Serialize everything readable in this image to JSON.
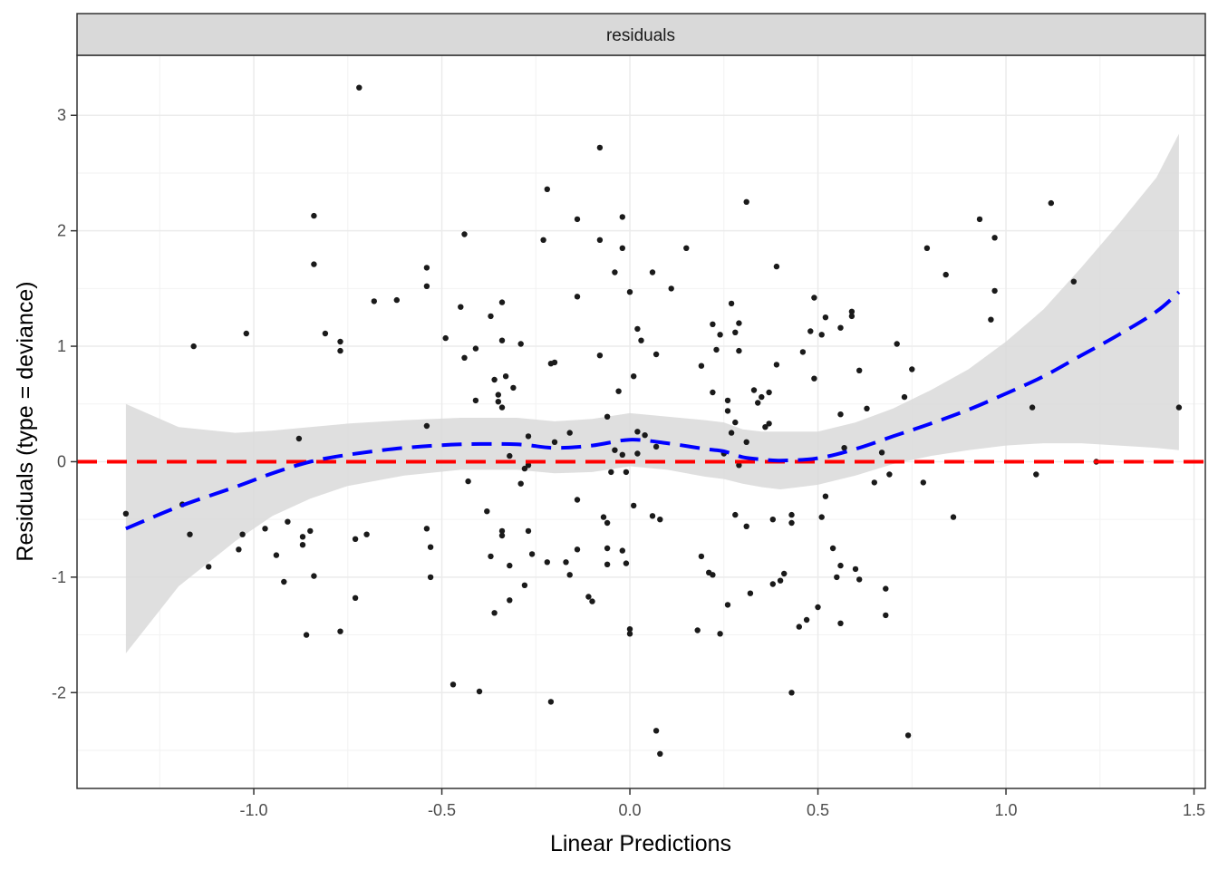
{
  "chart_data": {
    "type": "scatter",
    "panel_title": "residuals",
    "xlabel": "Linear Predictions",
    "ylabel": "Residuals (type = deviance)",
    "xlim": [
      -1.47,
      1.53
    ],
    "ylim": [
      -2.83,
      3.52
    ],
    "x_ticks": [
      -1.0,
      -0.5,
      0.0,
      0.5,
      1.0,
      1.5
    ],
    "x_tick_labels": [
      "-1.0",
      "-0.5",
      "0.0",
      "0.5",
      "1.0",
      "1.5"
    ],
    "y_ticks": [
      -2,
      -1,
      0,
      1,
      2,
      3
    ],
    "y_tick_labels": [
      "-2",
      "-1",
      "0",
      "1",
      "2",
      "3"
    ],
    "grid": true,
    "reference_line": {
      "y": 0,
      "color": "#ff0000",
      "style": "dashed"
    },
    "colors": {
      "points": "#1a1a1a",
      "smooth": "#0000ff",
      "ribbon": "#d9d9d9",
      "strip": "#d9d9d9"
    },
    "points": [
      [
        -1.34,
        -0.45
      ],
      [
        -1.19,
        -0.37
      ],
      [
        -1.17,
        -0.63
      ],
      [
        -1.16,
        1.0
      ],
      [
        -1.12,
        -0.91
      ],
      [
        -1.04,
        -0.76
      ],
      [
        -1.03,
        -0.63
      ],
      [
        -1.02,
        1.11
      ],
      [
        -0.97,
        -0.58
      ],
      [
        -0.94,
        -0.81
      ],
      [
        -0.92,
        -1.04
      ],
      [
        -0.91,
        -0.52
      ],
      [
        -0.88,
        0.2
      ],
      [
        -0.87,
        -0.65
      ],
      [
        -0.87,
        -0.72
      ],
      [
        -0.86,
        -1.5
      ],
      [
        -0.85,
        -0.6
      ],
      [
        -0.84,
        1.71
      ],
      [
        -0.84,
        2.13
      ],
      [
        -0.84,
        -0.99
      ],
      [
        -0.81,
        1.11
      ],
      [
        -0.77,
        1.04
      ],
      [
        -0.77,
        0.96
      ],
      [
        -0.77,
        -1.47
      ],
      [
        -0.73,
        -0.67
      ],
      [
        -0.73,
        -1.18
      ],
      [
        -0.72,
        3.24
      ],
      [
        -0.7,
        -0.63
      ],
      [
        -0.68,
        1.39
      ],
      [
        -0.62,
        1.4
      ],
      [
        -0.54,
        1.52
      ],
      [
        -0.54,
        1.68
      ],
      [
        -0.54,
        0.31
      ],
      [
        -0.54,
        -0.58
      ],
      [
        -0.53,
        -0.74
      ],
      [
        -0.53,
        -1.0
      ],
      [
        -0.49,
        1.07
      ],
      [
        -0.47,
        -1.93
      ],
      [
        -0.45,
        1.34
      ],
      [
        -0.44,
        0.9
      ],
      [
        -0.44,
        1.97
      ],
      [
        -0.43,
        -0.17
      ],
      [
        -0.41,
        0.98
      ],
      [
        -0.41,
        0.53
      ],
      [
        -0.4,
        -1.99
      ],
      [
        -0.38,
        -0.43
      ],
      [
        -0.37,
        -0.82
      ],
      [
        -0.37,
        1.26
      ],
      [
        -0.36,
        -1.31
      ],
      [
        -0.36,
        0.71
      ],
      [
        -0.35,
        0.58
      ],
      [
        -0.35,
        0.52
      ],
      [
        -0.34,
        1.38
      ],
      [
        -0.34,
        -0.64
      ],
      [
        -0.34,
        -0.6
      ],
      [
        -0.34,
        0.47
      ],
      [
        -0.34,
        1.05
      ],
      [
        -0.33,
        0.74
      ],
      [
        -0.32,
        -1.2
      ],
      [
        -0.32,
        -0.9
      ],
      [
        -0.32,
        0.05
      ],
      [
        -0.31,
        0.64
      ],
      [
        -0.29,
        1.02
      ],
      [
        -0.29,
        -0.19
      ],
      [
        -0.28,
        -1.07
      ],
      [
        -0.28,
        -0.06
      ],
      [
        -0.27,
        -0.03
      ],
      [
        -0.27,
        0.22
      ],
      [
        -0.27,
        -0.6
      ],
      [
        -0.26,
        -0.8
      ],
      [
        -0.23,
        1.92
      ],
      [
        -0.22,
        2.36
      ],
      [
        -0.22,
        -0.87
      ],
      [
        -0.21,
        0.85
      ],
      [
        -0.21,
        -2.08
      ],
      [
        -0.2,
        0.86
      ],
      [
        -0.2,
        0.17
      ],
      [
        -0.17,
        -0.87
      ],
      [
        -0.16,
        0.25
      ],
      [
        -0.16,
        -0.98
      ],
      [
        -0.14,
        2.1
      ],
      [
        -0.14,
        1.43
      ],
      [
        -0.14,
        -0.33
      ],
      [
        -0.14,
        -0.76
      ],
      [
        -0.11,
        -1.17
      ],
      [
        -0.1,
        -1.21
      ],
      [
        -0.08,
        2.72
      ],
      [
        -0.08,
        1.92
      ],
      [
        -0.08,
        0.92
      ],
      [
        -0.07,
        -0.48
      ],
      [
        -0.06,
        0.39
      ],
      [
        -0.06,
        -0.53
      ],
      [
        -0.06,
        -0.89
      ],
      [
        -0.06,
        -0.75
      ],
      [
        -0.05,
        -0.09
      ],
      [
        -0.04,
        1.64
      ],
      [
        -0.04,
        0.1
      ],
      [
        -0.03,
        0.61
      ],
      [
        -0.02,
        2.12
      ],
      [
        -0.02,
        1.85
      ],
      [
        -0.02,
        0.06
      ],
      [
        -0.02,
        -0.77
      ],
      [
        -0.01,
        -0.88
      ],
      [
        -0.01,
        -0.09
      ],
      [
        0.0,
        1.47
      ],
      [
        0.0,
        -1.49
      ],
      [
        0.0,
        -1.45
      ],
      [
        0.01,
        0.74
      ],
      [
        0.01,
        -0.38
      ],
      [
        0.02,
        0.07
      ],
      [
        0.02,
        0.26
      ],
      [
        0.02,
        1.15
      ],
      [
        0.03,
        1.05
      ],
      [
        0.04,
        0.23
      ],
      [
        0.06,
        1.64
      ],
      [
        0.06,
        -0.47
      ],
      [
        0.07,
        0.93
      ],
      [
        0.07,
        0.13
      ],
      [
        0.07,
        -2.33
      ],
      [
        0.08,
        -2.53
      ],
      [
        0.08,
        -0.5
      ],
      [
        0.11,
        1.5
      ],
      [
        0.15,
        1.85
      ],
      [
        0.18,
        -1.46
      ],
      [
        0.19,
        -0.82
      ],
      [
        0.19,
        0.83
      ],
      [
        0.21,
        -0.96
      ],
      [
        0.22,
        -0.98
      ],
      [
        0.22,
        0.6
      ],
      [
        0.22,
        1.19
      ],
      [
        0.23,
        0.97
      ],
      [
        0.24,
        1.1
      ],
      [
        0.24,
        -1.49
      ],
      [
        0.25,
        0.07
      ],
      [
        0.26,
        0.44
      ],
      [
        0.26,
        -1.24
      ],
      [
        0.26,
        0.53
      ],
      [
        0.27,
        0.25
      ],
      [
        0.27,
        1.37
      ],
      [
        0.28,
        0.34
      ],
      [
        0.28,
        -0.46
      ],
      [
        0.28,
        1.12
      ],
      [
        0.29,
        -0.03
      ],
      [
        0.29,
        1.2
      ],
      [
        0.29,
        0.96
      ],
      [
        0.31,
        0.17
      ],
      [
        0.31,
        -0.56
      ],
      [
        0.31,
        2.25
      ],
      [
        0.32,
        -1.14
      ],
      [
        0.33,
        0.62
      ],
      [
        0.34,
        0.51
      ],
      [
        0.35,
        0.56
      ],
      [
        0.36,
        0.3
      ],
      [
        0.37,
        0.6
      ],
      [
        0.37,
        0.33
      ],
      [
        0.38,
        -1.06
      ],
      [
        0.38,
        -0.5
      ],
      [
        0.39,
        1.69
      ],
      [
        0.39,
        0.84
      ],
      [
        0.4,
        -1.03
      ],
      [
        0.41,
        -0.97
      ],
      [
        0.43,
        -2.0
      ],
      [
        0.43,
        -0.46
      ],
      [
        0.43,
        -0.53
      ],
      [
        0.45,
        -1.43
      ],
      [
        0.46,
        0.95
      ],
      [
        0.47,
        -1.37
      ],
      [
        0.48,
        1.13
      ],
      [
        0.49,
        0.72
      ],
      [
        0.49,
        1.42
      ],
      [
        0.5,
        -1.26
      ],
      [
        0.51,
        1.1
      ],
      [
        0.51,
        -0.48
      ],
      [
        0.52,
        1.25
      ],
      [
        0.52,
        -0.3
      ],
      [
        0.54,
        -0.75
      ],
      [
        0.55,
        -1.0
      ],
      [
        0.56,
        -0.9
      ],
      [
        0.56,
        0.41
      ],
      [
        0.56,
        -1.4
      ],
      [
        0.57,
        0.12
      ],
      [
        0.56,
        1.16
      ],
      [
        0.59,
        1.26
      ],
      [
        0.59,
        1.3
      ],
      [
        0.6,
        -0.93
      ],
      [
        0.61,
        -1.02
      ],
      [
        0.61,
        0.79
      ],
      [
        0.63,
        0.46
      ],
      [
        0.65,
        -0.18
      ],
      [
        0.67,
        0.08
      ],
      [
        0.68,
        -1.33
      ],
      [
        0.68,
        -1.1
      ],
      [
        0.69,
        -0.11
      ],
      [
        0.71,
        1.02
      ],
      [
        0.73,
        0.56
      ],
      [
        0.74,
        -2.37
      ],
      [
        0.75,
        0.8
      ],
      [
        0.79,
        1.85
      ],
      [
        0.78,
        -0.18
      ],
      [
        0.84,
        1.62
      ],
      [
        0.86,
        -0.48
      ],
      [
        0.93,
        2.1
      ],
      [
        0.96,
        1.23
      ],
      [
        0.97,
        1.94
      ],
      [
        0.97,
        1.48
      ],
      [
        1.07,
        0.47
      ],
      [
        1.08,
        -0.11
      ],
      [
        1.12,
        2.24
      ],
      [
        1.18,
        1.56
      ],
      [
        1.24,
        0.0
      ],
      [
        1.46,
        0.47
      ]
    ],
    "smooth": {
      "x": [
        -1.34,
        -1.2,
        -1.05,
        -0.95,
        -0.85,
        -0.75,
        -0.6,
        -0.45,
        -0.3,
        -0.2,
        -0.1,
        0.0,
        0.1,
        0.2,
        0.25,
        0.3,
        0.35,
        0.4,
        0.5,
        0.6,
        0.7,
        0.8,
        0.9,
        1.0,
        1.1,
        1.2,
        1.3,
        1.4,
        1.46
      ],
      "y": [
        -0.58,
        -0.39,
        -0.22,
        -0.1,
        0.0,
        0.06,
        0.12,
        0.15,
        0.15,
        0.12,
        0.14,
        0.19,
        0.16,
        0.11,
        0.09,
        0.04,
        0.02,
        0.01,
        0.03,
        0.11,
        0.22,
        0.33,
        0.45,
        0.59,
        0.74,
        0.92,
        1.1,
        1.3,
        1.47
      ],
      "lower": [
        -1.66,
        -1.08,
        -0.69,
        -0.47,
        -0.32,
        -0.21,
        -0.12,
        -0.07,
        -0.07,
        -0.1,
        -0.09,
        -0.04,
        -0.07,
        -0.13,
        -0.15,
        -0.19,
        -0.22,
        -0.24,
        -0.2,
        -0.12,
        -0.02,
        0.05,
        0.1,
        0.14,
        0.16,
        0.16,
        0.14,
        0.12,
        0.1
      ],
      "upper": [
        0.5,
        0.3,
        0.25,
        0.27,
        0.3,
        0.33,
        0.36,
        0.38,
        0.38,
        0.35,
        0.37,
        0.42,
        0.39,
        0.36,
        0.34,
        0.28,
        0.26,
        0.26,
        0.26,
        0.34,
        0.46,
        0.62,
        0.8,
        1.04,
        1.32,
        1.68,
        2.06,
        2.46,
        2.84
      ]
    }
  }
}
